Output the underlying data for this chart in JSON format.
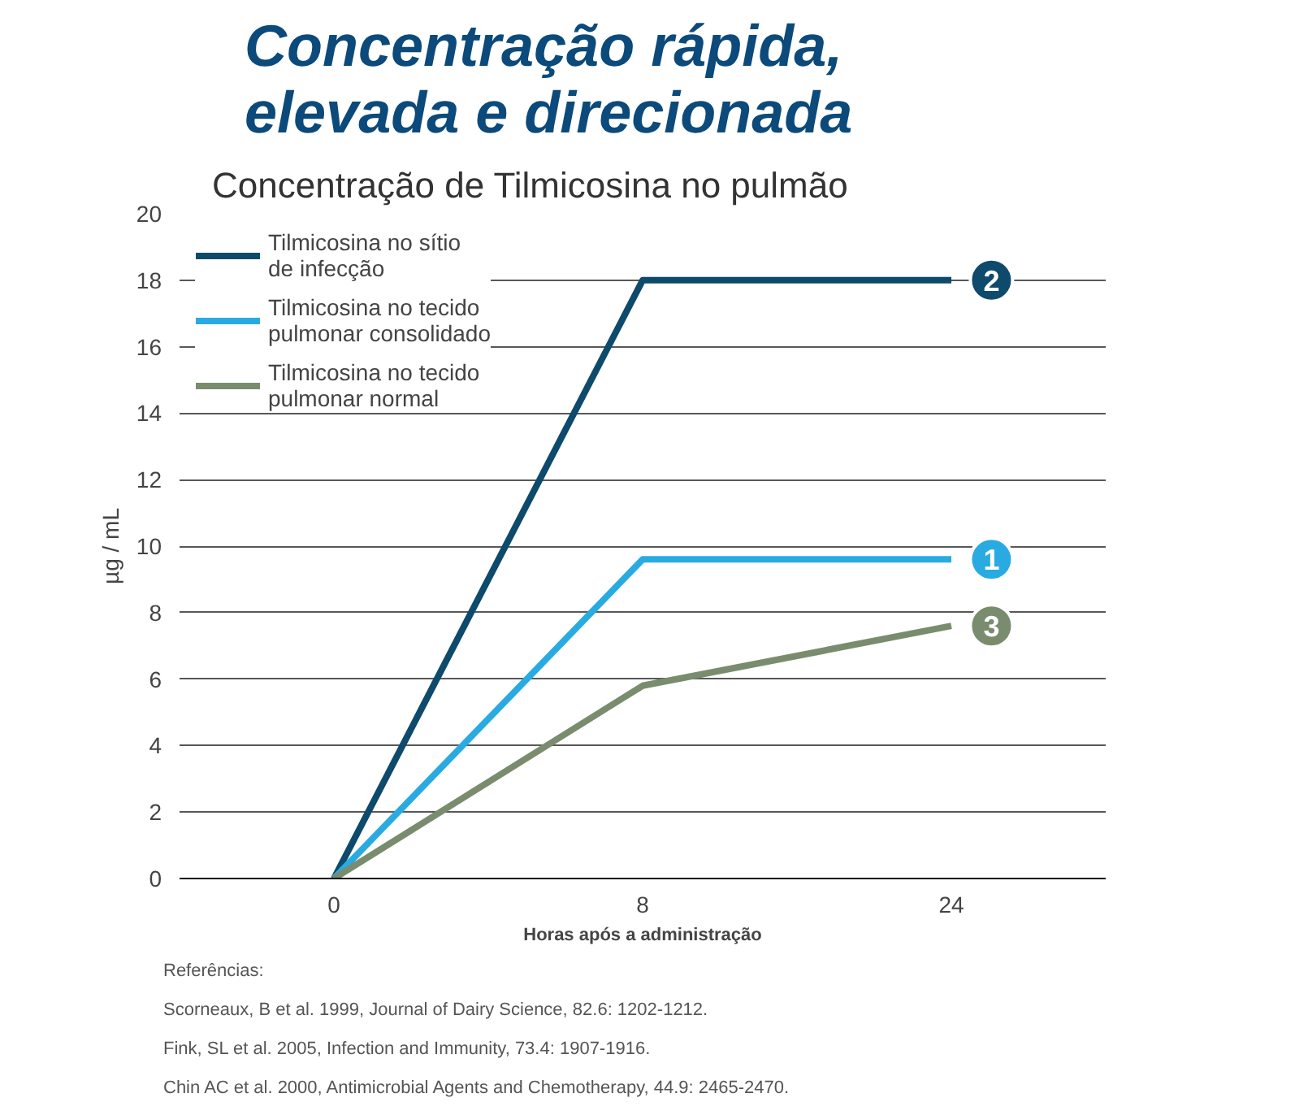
{
  "chart_data": {
    "type": "line",
    "title": "Concentração rápida,\nelevada e direcionada",
    "subtitle": "Concentração de Tilmicosina no pulmão",
    "xlabel": "Horas após a administração",
    "ylabel": "µg / mL",
    "categories": [
      "0",
      "8",
      "24"
    ],
    "series": [
      {
        "name": "Tilmicosina no sítio\nde infecção",
        "color": "#0d4a6b",
        "values": [
          0,
          18,
          18
        ]
      },
      {
        "name": "Tilmicosina no tecido\npulmonar consolidado",
        "color": "#29abe2",
        "values": [
          0,
          9.6,
          9.6
        ]
      },
      {
        "name": "Tilmicosina no tecido\npulmonar normal",
        "color": "#7a8c6e",
        "values": [
          0,
          5.8,
          7.6
        ]
      }
    ],
    "ylim": [
      0,
      20
    ],
    "yticks": [
      0,
      2,
      4,
      6,
      8,
      10,
      12,
      14,
      16,
      18,
      20
    ],
    "grid": "y",
    "legend": "top left",
    "marker": "none",
    "line_style": "solid",
    "annotations": [
      {
        "text": "2",
        "x": "24",
        "y": 18
      },
      {
        "text": "1",
        "x": "24",
        "y": 9.6
      },
      {
        "text": "3",
        "x": "24",
        "y": 7.6
      },
      "Referências:",
      "Scorneaux, B et al. 1999, Journal of Dairy Science, 82.6: 1202-1212.",
      "Fink, SL et al. 2005, Infection and Immunity, 73.4: 1907-1916.",
      "Chin AC et al. 2000, Antimicrobial Agents and Chemotherapy, 44.9: 2465-2470."
    ]
  }
}
